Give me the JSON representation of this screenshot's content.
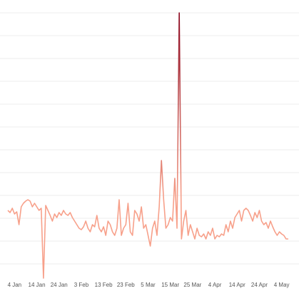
{
  "chart_data": {
    "type": "line",
    "categories": [
      null,
      null,
      null,
      "4 Jan",
      null,
      null,
      null,
      null,
      null,
      null,
      null,
      null,
      null,
      "14 Jan",
      null,
      null,
      null,
      null,
      null,
      null,
      null,
      null,
      null,
      "24 Jan",
      null,
      null,
      null,
      null,
      null,
      null,
      null,
      null,
      null,
      "3 Feb",
      null,
      null,
      null,
      null,
      null,
      null,
      null,
      null,
      null,
      "13 Feb",
      null,
      null,
      null,
      null,
      null,
      null,
      null,
      null,
      null,
      "23 Feb",
      null,
      null,
      null,
      null,
      null,
      null,
      null,
      null,
      null,
      "5 Mar",
      null,
      null,
      null,
      null,
      null,
      null,
      null,
      null,
      null,
      "15 Mar",
      null,
      null,
      null,
      null,
      null,
      null,
      null,
      null,
      null,
      "25 Mar",
      null,
      null,
      null,
      null,
      null,
      null,
      null,
      null,
      null,
      "4 Apr",
      null,
      null,
      null,
      null,
      null,
      null,
      null,
      null,
      null,
      "14 Apr",
      null,
      null,
      null,
      null,
      null,
      null,
      null,
      null,
      null,
      "24 Apr",
      null,
      null,
      null,
      null,
      null,
      null,
      null,
      null,
      null,
      "4 May",
      null,
      null,
      null
    ],
    "values": [
      95,
      92,
      98,
      90,
      93,
      75,
      100,
      105,
      108,
      110,
      108,
      100,
      105,
      100,
      95,
      98,
      0,
      102,
      95,
      88,
      80,
      90,
      85,
      92,
      88,
      95,
      90,
      88,
      92,
      85,
      80,
      75,
      70,
      68,
      72,
      80,
      70,
      65,
      75,
      72,
      88,
      70,
      65,
      72,
      60,
      80,
      75,
      65,
      60,
      70,
      110,
      60,
      70,
      75,
      105,
      65,
      60,
      95,
      90,
      80,
      100,
      70,
      75,
      60,
      45,
      70,
      80,
      60,
      100,
      165,
      110,
      70,
      75,
      85,
      80,
      140,
      70,
      372,
      55,
      80,
      95,
      60,
      75,
      65,
      55,
      70,
      60,
      58,
      62,
      55,
      65,
      60,
      70,
      55,
      60,
      58,
      62,
      60,
      75,
      65,
      80,
      70,
      85,
      90,
      95,
      80,
      95,
      98,
      95,
      88,
      80,
      92,
      85,
      95,
      80,
      75,
      78,
      70,
      80,
      72,
      65,
      60,
      65,
      62,
      60,
      55,
      55
    ],
    "ylim": [
      0,
      372
    ],
    "color_low": "#f7a08a",
    "color_high": "#8e0b22"
  }
}
